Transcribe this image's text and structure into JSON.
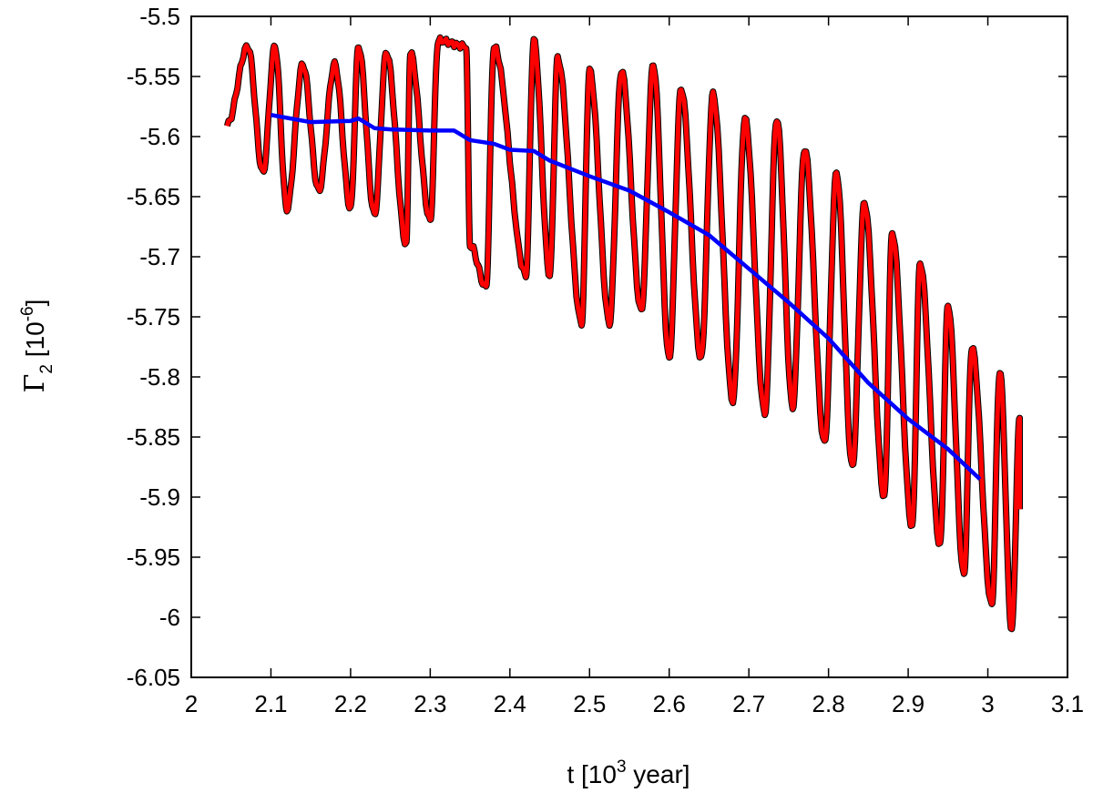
{
  "chart_data": {
    "type": "line",
    "title": "",
    "xlabel": {
      "base": "t [10",
      "exp": "3",
      "tail": " year]"
    },
    "ylabel": {
      "symbol": "Γ",
      "sub": "2",
      "mid": " [10",
      "exp": "-6",
      "tail": "]"
    },
    "xlim": [
      2.0,
      3.1
    ],
    "ylim": [
      -6.05,
      -5.5
    ],
    "xticks": [
      2.0,
      2.1,
      2.2,
      2.3,
      2.4,
      2.5,
      2.6,
      2.7,
      2.8,
      2.9,
      3.0,
      3.1
    ],
    "xtick_labels": [
      "2",
      "2.1",
      "2.2",
      "2.3",
      "2.4",
      "2.5",
      "2.6",
      "2.7",
      "2.8",
      "2.9",
      "3",
      "3.1"
    ],
    "yticks": [
      -5.5,
      -5.55,
      -5.6,
      -5.65,
      -5.7,
      -5.75,
      -5.8,
      -5.85,
      -5.9,
      -5.95,
      -6.0,
      -6.05
    ],
    "ytick_labels": [
      "-5.5",
      "-5.55",
      "-5.6",
      "-5.65",
      "-5.7",
      "-5.75",
      "-5.8",
      "-5.85",
      "-5.9",
      "-5.95",
      "-6",
      "-6.05"
    ],
    "grid": false,
    "legend": "none",
    "oscillation": {
      "color": "#ff0000",
      "shadow_color": "#000000",
      "x_start": 2.045,
      "x_end": 3.04,
      "start_value": -5.59,
      "end_value": -5.91,
      "peaks": [
        [
          2.071,
          -5.525
        ],
        [
          2.105,
          -5.525
        ],
        [
          2.14,
          -5.54
        ],
        [
          2.18,
          -5.54
        ],
        [
          2.21,
          -5.525
        ],
        [
          2.245,
          -5.53
        ],
        [
          2.275,
          -5.53
        ],
        [
          2.31,
          -5.52
        ],
        [
          2.345,
          -5.525
        ],
        [
          2.38,
          -5.525
        ],
        [
          2.43,
          -5.52
        ],
        [
          2.46,
          -5.535
        ],
        [
          2.5,
          -5.545
        ],
        [
          2.54,
          -5.545
        ],
        [
          2.58,
          -5.54
        ],
        [
          2.615,
          -5.56
        ],
        [
          2.655,
          -5.565
        ],
        [
          2.695,
          -5.585
        ],
        [
          2.735,
          -5.585
        ],
        [
          2.77,
          -5.61
        ],
        [
          2.81,
          -5.63
        ],
        [
          2.845,
          -5.655
        ],
        [
          2.88,
          -5.68
        ],
        [
          2.915,
          -5.705
        ],
        [
          2.95,
          -5.74
        ],
        [
          2.98,
          -5.775
        ],
        [
          3.015,
          -5.795
        ],
        [
          3.04,
          -5.835
        ]
      ],
      "troughs": [
        [
          2.09,
          -5.63
        ],
        [
          2.12,
          -5.66
        ],
        [
          2.16,
          -5.645
        ],
        [
          2.2,
          -5.66
        ],
        [
          2.23,
          -5.665
        ],
        [
          2.27,
          -5.69
        ],
        [
          2.3,
          -5.67
        ],
        [
          2.35,
          -5.69
        ],
        [
          2.37,
          -5.725
        ],
        [
          2.42,
          -5.715
        ],
        [
          2.45,
          -5.715
        ],
        [
          2.49,
          -5.755
        ],
        [
          2.525,
          -5.755
        ],
        [
          2.565,
          -5.745
        ],
        [
          2.6,
          -5.785
        ],
        [
          2.64,
          -5.785
        ],
        [
          2.68,
          -5.82
        ],
        [
          2.72,
          -5.83
        ],
        [
          2.755,
          -5.825
        ],
        [
          2.795,
          -5.855
        ],
        [
          2.83,
          -5.875
        ],
        [
          2.87,
          -5.9
        ],
        [
          2.905,
          -5.925
        ],
        [
          2.94,
          -5.94
        ],
        [
          2.97,
          -5.965
        ],
        [
          3.005,
          -5.99
        ],
        [
          3.03,
          -6.01
        ]
      ]
    },
    "trend": {
      "color": "#0000ff",
      "x": [
        2.1,
        2.15,
        2.2,
        2.21,
        2.23,
        2.25,
        2.3,
        2.33,
        2.35,
        2.38,
        2.4,
        2.43,
        2.45,
        2.5,
        2.55,
        2.6,
        2.65,
        2.7,
        2.75,
        2.8,
        2.85,
        2.9,
        2.95,
        2.99
      ],
      "y": [
        -5.582,
        -5.588,
        -5.587,
        -5.585,
        -5.593,
        -5.594,
        -5.595,
        -5.595,
        -5.603,
        -5.606,
        -5.611,
        -5.612,
        -5.62,
        -5.633,
        -5.645,
        -5.663,
        -5.682,
        -5.71,
        -5.738,
        -5.768,
        -5.805,
        -5.835,
        -5.86,
        -5.885
      ]
    }
  }
}
